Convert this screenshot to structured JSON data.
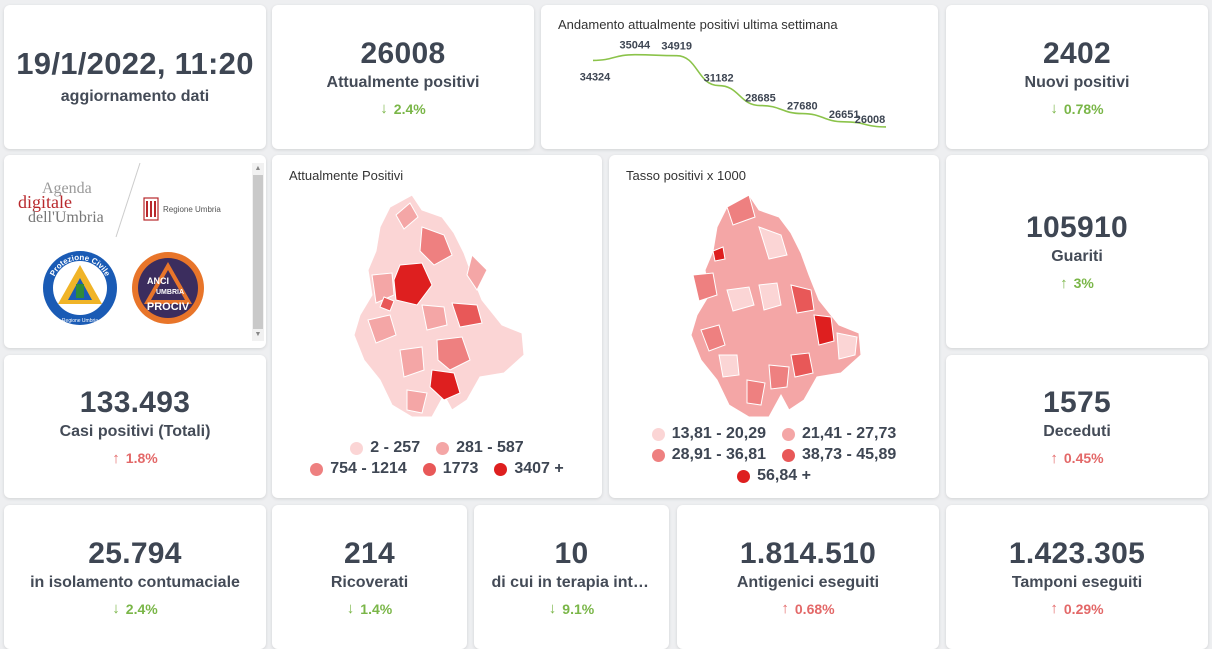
{
  "update": {
    "datetime": "19/1/2022, 11:20",
    "label": "aggiornamento dati"
  },
  "attualmente_positivi": {
    "value": "26008",
    "label": "Attualmente positivi",
    "change": "2.4%",
    "direction": "down",
    "arrow": "↓"
  },
  "trend": {
    "title": "Andamento attualmente positivi ultima settimana",
    "chart_data": {
      "type": "line",
      "title": "Andamento attualmente positivi ultima settimana",
      "x": [
        1,
        2,
        3,
        4,
        5,
        6,
        7,
        8
      ],
      "values": [
        34324,
        35044,
        34919,
        31182,
        28685,
        27680,
        26651,
        26008
      ],
      "labels": [
        "34324",
        "35044",
        "34919",
        "31182",
        "28685",
        "27680",
        "26651",
        "26008"
      ],
      "color": "#8bc34a"
    }
  },
  "nuovi_positivi": {
    "value": "2402",
    "label": "Nuovi positivi",
    "change": "0.78%",
    "direction": "down",
    "arrow": "↓"
  },
  "logos": {
    "agenda_line1": "Agenda",
    "agenda_line2": "digitale",
    "agenda_line3": "dell'Umbria",
    "regione": "Regione Umbria",
    "protezione": "Protezione Civile",
    "protezione_sub": "Regione Umbria",
    "anci_line1": "ANCI",
    "anci_line2": "UMBRIA",
    "anci_line3": "PROCIV"
  },
  "map_positivi": {
    "title": "Attualmente Positivi",
    "legend": [
      {
        "label": "2 - 257",
        "color": "#fbd5d5"
      },
      {
        "label": "281 - 587",
        "color": "#f4a6a6"
      },
      {
        "label": "754 - 1214",
        "color": "#ee8080"
      },
      {
        "label": "1773",
        "color": "#e85858"
      },
      {
        "label": "3407 +",
        "color": "#de1f1f"
      }
    ]
  },
  "map_tasso": {
    "title": "Tasso positivi x 1000",
    "legend": [
      {
        "label": "13,81 - 20,29",
        "color": "#fbd5d5"
      },
      {
        "label": "21,41 - 27,73",
        "color": "#f4a6a6"
      },
      {
        "label": "28,91 - 36,81",
        "color": "#ee8080"
      },
      {
        "label": "38,73 - 45,89",
        "color": "#e85858"
      },
      {
        "label": "56,84 +",
        "color": "#de1f1f"
      }
    ]
  },
  "guariti": {
    "value": "105910",
    "label": "Guariti",
    "change": "3%",
    "direction": "up",
    "arrow": "↑",
    "color": "green"
  },
  "casi_totali": {
    "value": "133.493",
    "label": "Casi positivi (Totali)",
    "change": "1.8%",
    "direction": "up",
    "arrow": "↑"
  },
  "deceduti": {
    "value": "1575",
    "label": "Deceduti",
    "change": "0.45%",
    "direction": "up",
    "arrow": "↑"
  },
  "isolamento": {
    "value": "25.794",
    "label": "in isolamento contumaciale",
    "change": "2.4%",
    "direction": "down",
    "arrow": "↓"
  },
  "ricoverati": {
    "value": "214",
    "label": "Ricoverati",
    "change": "1.4%",
    "direction": "down",
    "arrow": "↓"
  },
  "terapia": {
    "value": "10",
    "label": "di cui in terapia intensiva",
    "change": "9.1%",
    "direction": "down",
    "arrow": "↓"
  },
  "antigenici": {
    "value": "1.814.510",
    "label": "Antigenici eseguiti",
    "change": "0.68%",
    "direction": "up",
    "arrow": "↑"
  },
  "tamponi": {
    "value": "1.423.305",
    "label": "Tamponi eseguiti",
    "change": "0.29%",
    "direction": "up",
    "arrow": "↑"
  }
}
